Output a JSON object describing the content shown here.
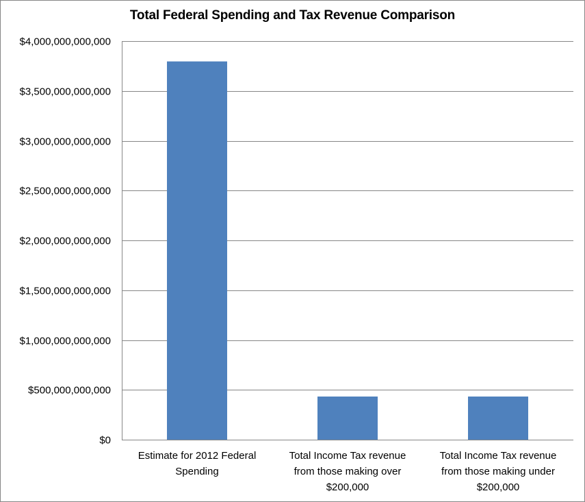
{
  "chart_data": {
    "type": "bar",
    "title": "Total Federal Spending and Tax Revenue Comparison",
    "xlabel": "",
    "ylabel": "",
    "ylim": [
      0,
      4000000000000
    ],
    "grid": true,
    "legend": "none",
    "bar_color": "#4F81BD",
    "yticks": [
      0,
      500000000000,
      1000000000000,
      1500000000000,
      2000000000000,
      2500000000000,
      3000000000000,
      3500000000000,
      4000000000000
    ],
    "ytick_labels": [
      "$0",
      "$500,000,000,000",
      "$1,000,000,000,000",
      "$1,500,000,000,000",
      "$2,000,000,000,000",
      "$2,500,000,000,000",
      "$3,000,000,000,000",
      "$3,500,000,000,000",
      "$4,000,000,000,000"
    ],
    "categories": [
      [
        "Estimate for 2012 Federal",
        "Spending"
      ],
      [
        "Total Income Tax revenue",
        "from those making over",
        "$200,000"
      ],
      [
        "Total Income Tax revenue",
        "from those making under",
        "$200,000"
      ]
    ],
    "values": [
      3796000000000,
      433000000000,
      433000000000
    ]
  }
}
